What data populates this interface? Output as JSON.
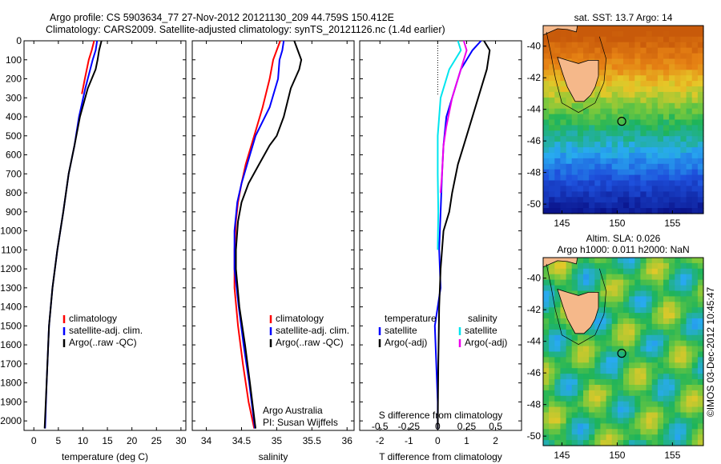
{
  "header": {
    "line1": "Argo profile: CS 5903634_77 27-Nov-2012 20121130_209 44.759S 150.412E",
    "line2": "Climatology: CARS2009. Satellite-adjusted climatology: synTS_20121126.nc (1.4d earlier)"
  },
  "colors": {
    "climatology": "#ff0000",
    "satellite": "#0000ff",
    "argo": "#000000",
    "salinity_satellite": "#00e5ee",
    "salinity_argo": "#ee00ee"
  },
  "chart_data": [
    {
      "type": "line",
      "xlabel": "temperature (deg C)",
      "xlim": [
        -2,
        31
      ],
      "xticks": [
        0,
        5,
        10,
        15,
        20,
        25,
        30
      ],
      "ylim": [
        0,
        2050
      ],
      "yticks": [
        0,
        100,
        200,
        300,
        400,
        500,
        600,
        700,
        800,
        900,
        1000,
        1100,
        1200,
        1300,
        1400,
        1500,
        1600,
        1700,
        1800,
        1900,
        2000
      ],
      "inverted_y": true,
      "legend_position": "lower-left",
      "series": [
        {
          "name": "climatology",
          "color": "#ff0000",
          "x": [
            12.3,
            11.8,
            11.2,
            10.4,
            9.8
          ],
          "y": [
            0,
            50,
            100,
            200,
            280
          ]
        },
        {
          "name": "satellite-adj. clim.",
          "color": "#0000ff",
          "x": [
            12.9,
            12.6,
            12.0,
            10.5,
            9.2,
            8.3,
            7.1,
            6.0,
            4.8,
            3.8,
            3.1,
            2.6,
            2.3
          ],
          "y": [
            0,
            50,
            100,
            250,
            400,
            550,
            700,
            900,
            1100,
            1300,
            1500,
            1800,
            2040
          ]
        },
        {
          "name": "Argo(..raw -QC)",
          "color": "#000000",
          "x": [
            13.8,
            13.3,
            13.0,
            12.6,
            11.0,
            9.4,
            8.3,
            7.1,
            6.0,
            4.8,
            3.8,
            3.1,
            2.6,
            2.2
          ],
          "y": [
            0,
            50,
            100,
            150,
            250,
            400,
            550,
            700,
            900,
            1100,
            1300,
            1500,
            1800,
            2040
          ]
        }
      ]
    },
    {
      "type": "line",
      "xlabel": "salinity",
      "xlim": [
        33.8,
        36.1
      ],
      "xticks": [
        34,
        34.5,
        35,
        35.5,
        36
      ],
      "ylim": [
        0,
        2050
      ],
      "inverted_y": true,
      "legend_position": "lower-left",
      "annotation": [
        "Argo Australia",
        "PI: Susan Wijffels"
      ],
      "series": [
        {
          "name": "climatology",
          "color": "#ff0000",
          "x": [
            35.05,
            35.0,
            34.95,
            34.9,
            34.8,
            34.68,
            34.56,
            34.5,
            34.45,
            34.42,
            34.4,
            34.4,
            34.45,
            34.52,
            34.6,
            34.68
          ],
          "y": [
            0,
            50,
            100,
            200,
            350,
            500,
            650,
            750,
            850,
            950,
            1100,
            1300,
            1500,
            1700,
            1900,
            2040
          ]
        },
        {
          "name": "satellite-adj. clim.",
          "color": "#0000ff",
          "x": [
            35.1,
            35.08,
            35.04,
            35.02,
            34.9,
            34.7,
            34.58,
            34.5,
            34.44,
            34.4,
            34.4,
            34.46,
            34.53,
            34.61,
            34.69
          ],
          "y": [
            0,
            50,
            100,
            200,
            350,
            500,
            650,
            750,
            850,
            1000,
            1200,
            1400,
            1600,
            1800,
            2040
          ]
        },
        {
          "name": "Argo(..raw -QC)",
          "color": "#000000",
          "x": [
            35.25,
            35.3,
            35.35,
            35.32,
            35.2,
            35.1,
            35.0,
            34.9,
            34.75,
            34.6,
            34.5,
            34.45,
            34.42,
            34.42,
            34.47,
            34.55,
            34.62,
            34.7
          ],
          "y": [
            0,
            50,
            100,
            150,
            250,
            400,
            500,
            550,
            650,
            750,
            850,
            950,
            1100,
            1200,
            1400,
            1600,
            1800,
            2040
          ]
        }
      ]
    },
    {
      "type": "line",
      "xlabel": "T difference from climatology",
      "xlabel_top": "S difference from climatology",
      "xlim": [
        -2.7,
        2.9
      ],
      "xticks": [
        -2,
        -1,
        0,
        1,
        2
      ],
      "xticks_top": [
        -0.5,
        -0.25,
        0,
        0.25,
        0.5
      ],
      "ylim": [
        0,
        2050
      ],
      "inverted_y": true,
      "legend_position": "lower-middle",
      "legend_groups": [
        "temperature",
        "salinity"
      ],
      "series": [
        {
          "name": "satellite",
          "group": "temperature",
          "color": "#0000ff",
          "x": [
            1.5,
            1.2,
            0.8,
            0.6,
            0.3,
            0.2,
            0.15,
            0.1,
            0.05,
            0.1,
            -0.1,
            -0.05,
            0,
            0
          ],
          "y": [
            0,
            50,
            150,
            250,
            400,
            550,
            700,
            900,
            1100,
            1300,
            1500,
            1700,
            1900,
            2040
          ]
        },
        {
          "name": "Argo(-adj)",
          "group": "temperature",
          "color": "#000000",
          "x": [
            1.6,
            1.8,
            1.7,
            1.4,
            1.1,
            0.9,
            0.7,
            0.5,
            0.4,
            0.2,
            0.1,
            0.05,
            0.02,
            0
          ],
          "y": [
            0,
            50,
            150,
            300,
            450,
            550,
            650,
            800,
            900,
            1000,
            1200,
            1400,
            1700,
            2040
          ]
        },
        {
          "name": "satellite",
          "group": "salinity",
          "color": "#00e5ee",
          "x": [
            0.7,
            0.8,
            0.4,
            0.1,
            0.0,
            0.0,
            0.02,
            0.0
          ],
          "y": [
            0,
            50,
            150,
            300,
            500,
            700,
            900,
            1100
          ]
        },
        {
          "name": "Argo(-adj)",
          "group": "salinity",
          "color": "#ee00ee",
          "x": [
            0.9,
            1.0,
            0.8,
            0.5,
            0.3,
            0.2,
            0.15,
            0.1
          ],
          "y": [
            0,
            50,
            150,
            300,
            450,
            550,
            700,
            800
          ]
        }
      ]
    },
    {
      "type": "heatmap",
      "title": "sat. SST: 13.7 Argo: 14",
      "xticks": [
        145,
        150,
        155
      ],
      "yticks": [
        -40,
        -42,
        -44,
        -46,
        -48,
        -50
      ],
      "argo_location": [
        150.412,
        -44.759
      ]
    },
    {
      "type": "heatmap",
      "title_lines": [
        "Altim. SLA: 0.026",
        "Argo h1000: 0.011 h2000: NaN"
      ],
      "xticks": [
        145,
        150,
        155
      ],
      "yticks": [
        -40,
        -42,
        -44,
        -46,
        -48,
        -50
      ],
      "argo_location": [
        150.412,
        -44.759
      ],
      "side_label": "©IMOS 03-Dec-2012 10:45:47"
    }
  ]
}
